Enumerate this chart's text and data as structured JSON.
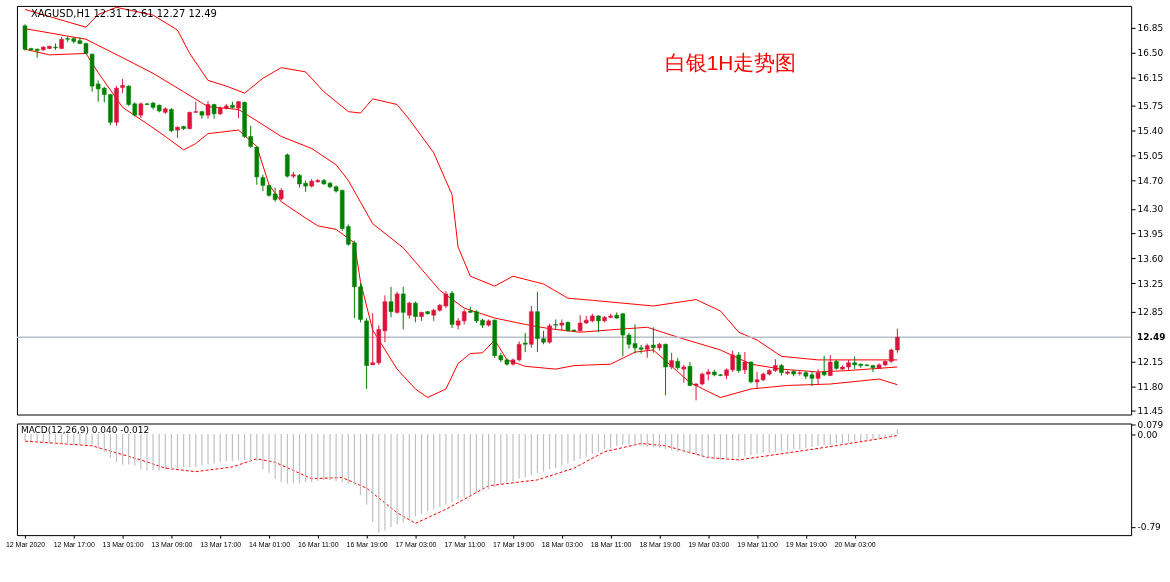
{
  "chart_data": [
    {
      "type": "candlestick",
      "title": "白银1H走势图",
      "subtitle": "XAGUSD,H1  12.31 12.61 12.27 12.49",
      "categories": [
        null,
        null,
        null,
        null,
        null,
        null,
        null,
        null,
        null,
        null,
        null,
        null,
        null,
        null,
        null,
        null,
        null,
        null,
        null,
        null,
        null,
        null,
        null,
        null,
        null,
        null,
        null,
        null,
        null,
        null,
        null,
        null,
        null,
        null,
        null,
        null,
        null,
        null,
        null,
        null,
        null,
        null,
        null,
        null,
        null,
        null,
        null,
        null,
        null,
        null,
        null,
        null,
        null,
        null,
        null,
        null,
        null,
        null,
        null,
        null,
        null,
        null,
        null,
        null,
        null,
        null,
        null,
        null,
        null,
        null,
        null,
        null,
        null,
        null,
        null,
        null,
        null,
        null,
        null,
        null,
        null,
        null,
        null,
        null,
        null,
        null,
        null,
        null,
        null,
        null,
        null,
        null,
        null,
        null,
        null,
        null,
        null,
        null,
        null,
        null,
        null,
        null,
        null,
        null,
        null,
        null,
        null,
        null,
        null,
        null,
        null,
        null,
        null,
        null,
        null,
        null,
        null,
        null,
        null,
        null,
        null,
        null,
        null,
        null,
        null,
        null,
        null,
        null,
        null,
        null,
        null,
        null,
        null,
        null,
        null,
        null,
        null,
        null,
        null,
        null,
        null,
        null,
        null,
        null,
        null,
        null,
        null,
        null,
        null,
        null,
        null,
        null,
        null,
        null,
        null,
        null,
        null,
        null,
        null,
        null,
        null,
        null,
        null,
        null,
        null,
        null,
        null,
        null,
        null,
        null,
        null,
        null,
        null,
        null,
        null,
        null,
        null,
        null,
        null,
        null,
        null
      ],
      "ohlc": [
        [
          16.88,
          16.9,
          16.53,
          16.55
        ],
        [
          16.56,
          16.57,
          16.53,
          16.54
        ],
        [
          16.55,
          16.56,
          16.43,
          16.53
        ],
        [
          16.54,
          16.59,
          16.53,
          16.58
        ],
        [
          16.56,
          16.6,
          16.55,
          16.59
        ],
        [
          16.58,
          16.63,
          16.54,
          16.57
        ],
        [
          16.56,
          16.72,
          16.55,
          16.69
        ],
        [
          16.7,
          16.73,
          16.65,
          16.69
        ],
        [
          16.7,
          16.72,
          16.63,
          16.66
        ],
        [
          16.67,
          16.72,
          16.62,
          16.63
        ],
        [
          16.63,
          16.64,
          16.48,
          16.49
        ],
        [
          16.48,
          16.49,
          15.95,
          16.03
        ],
        [
          16.06,
          16.11,
          15.81,
          15.99
        ],
        [
          16.0,
          16.02,
          15.8,
          15.91
        ],
        [
          15.91,
          15.92,
          15.48,
          15.52
        ],
        [
          15.52,
          16.03,
          15.47,
          16.0
        ],
        [
          16.01,
          16.13,
          15.93,
          16.04
        ],
        [
          16.03,
          16.04,
          15.75,
          15.77
        ],
        [
          15.78,
          15.8,
          15.6,
          15.62
        ],
        [
          15.62,
          15.8,
          15.58,
          15.78
        ],
        [
          15.78,
          15.79,
          15.76,
          15.77
        ],
        [
          15.79,
          15.81,
          15.7,
          15.73
        ],
        [
          15.76,
          15.77,
          15.66,
          15.68
        ],
        [
          15.66,
          15.73,
          15.64,
          15.71
        ],
        [
          15.7,
          15.72,
          15.38,
          15.4
        ],
        [
          15.41,
          15.46,
          15.3,
          15.45
        ],
        [
          15.46,
          15.47,
          15.41,
          15.43
        ],
        [
          15.43,
          15.67,
          15.42,
          15.66
        ],
        [
          15.66,
          15.81,
          15.65,
          15.67
        ],
        [
          15.67,
          15.68,
          15.57,
          15.62
        ],
        [
          15.62,
          15.82,
          15.57,
          15.77
        ],
        [
          15.77,
          15.78,
          15.57,
          15.64
        ],
        [
          15.64,
          15.74,
          15.62,
          15.72
        ],
        [
          15.72,
          15.78,
          15.7,
          15.75
        ],
        [
          15.76,
          15.81,
          15.71,
          15.73
        ],
        [
          15.72,
          15.82,
          15.58,
          15.81
        ],
        [
          15.8,
          15.81,
          15.3,
          15.32
        ],
        [
          15.32,
          15.47,
          15.16,
          15.18
        ],
        [
          15.17,
          15.18,
          14.64,
          14.75
        ],
        [
          14.74,
          14.78,
          14.55,
          14.63
        ],
        [
          14.63,
          14.64,
          14.47,
          14.49
        ],
        [
          14.51,
          14.6,
          14.4,
          14.43
        ],
        [
          14.44,
          14.59,
          14.42,
          14.56
        ],
        [
          15.06,
          15.08,
          14.74,
          14.76
        ],
        [
          14.76,
          14.82,
          14.73,
          14.78
        ],
        [
          14.77,
          14.79,
          14.6,
          14.65
        ],
        [
          14.66,
          14.7,
          14.54,
          14.62
        ],
        [
          14.62,
          14.72,
          14.6,
          14.69
        ],
        [
          14.68,
          14.72,
          14.67,
          14.7
        ],
        [
          14.7,
          14.72,
          14.64,
          14.65
        ],
        [
          14.66,
          14.68,
          14.59,
          14.61
        ],
        [
          14.61,
          14.63,
          14.53,
          14.55
        ],
        [
          14.56,
          14.57,
          13.99,
          14.02
        ],
        [
          14.05,
          14.08,
          13.78,
          13.8
        ],
        [
          13.82,
          13.85,
          12.76,
          13.2
        ],
        [
          13.2,
          13.25,
          12.7,
          12.74
        ],
        [
          12.72,
          12.76,
          11.76,
          12.09
        ],
        [
          12.1,
          12.83,
          12.1,
          12.13
        ],
        [
          12.13,
          12.66,
          12.1,
          12.6
        ],
        [
          12.58,
          13.08,
          12.42,
          12.99
        ],
        [
          12.99,
          13.2,
          12.77,
          12.85
        ],
        [
          12.84,
          13.13,
          12.82,
          13.1
        ],
        [
          13.1,
          13.2,
          12.6,
          12.84
        ],
        [
          12.8,
          12.99,
          12.75,
          12.97
        ],
        [
          12.97,
          12.99,
          12.7,
          12.78
        ],
        [
          12.78,
          12.85,
          12.72,
          12.84
        ],
        [
          12.85,
          12.86,
          12.81,
          12.82
        ],
        [
          12.8,
          12.89,
          12.72,
          12.87
        ],
        [
          12.87,
          12.96,
          12.85,
          12.94
        ],
        [
          12.93,
          13.14,
          12.9,
          13.1
        ],
        [
          13.11,
          13.14,
          12.62,
          12.67
        ],
        [
          12.66,
          12.76,
          12.6,
          12.72
        ],
        [
          12.72,
          12.88,
          12.67,
          12.85
        ],
        [
          12.86,
          12.92,
          12.83,
          12.84
        ],
        [
          12.85,
          12.87,
          12.69,
          12.72
        ],
        [
          12.73,
          12.75,
          12.62,
          12.66
        ],
        [
          12.66,
          12.74,
          12.64,
          12.72
        ],
        [
          12.73,
          12.74,
          12.2,
          12.23
        ],
        [
          12.23,
          12.27,
          12.14,
          12.17
        ],
        [
          12.17,
          12.19,
          12.09,
          12.11
        ],
        [
          12.11,
          12.19,
          12.09,
          12.17
        ],
        [
          12.17,
          12.43,
          12.15,
          12.39
        ],
        [
          12.41,
          12.55,
          12.28,
          12.39
        ],
        [
          12.39,
          12.93,
          12.34,
          12.85
        ],
        [
          12.85,
          13.13,
          12.28,
          12.47
        ],
        [
          12.47,
          12.58,
          12.39,
          12.42
        ],
        [
          12.42,
          12.68,
          12.4,
          12.65
        ],
        [
          12.67,
          12.74,
          12.6,
          12.66
        ],
        [
          12.66,
          12.74,
          12.58,
          12.69
        ],
        [
          12.7,
          12.71,
          12.57,
          12.58
        ],
        [
          12.59,
          12.6,
          12.57,
          12.58
        ],
        [
          12.58,
          12.8,
          12.57,
          12.69
        ],
        [
          12.69,
          12.79,
          12.68,
          12.73
        ],
        [
          12.72,
          12.82,
          12.7,
          12.79
        ],
        [
          12.79,
          12.8,
          12.56,
          12.72
        ],
        [
          12.72,
          12.79,
          12.7,
          12.77
        ],
        [
          12.77,
          12.82,
          12.76,
          12.79
        ],
        [
          12.8,
          12.84,
          12.75,
          12.76
        ],
        [
          12.82,
          12.83,
          12.22,
          12.52
        ],
        [
          12.52,
          12.55,
          12.33,
          12.39
        ],
        [
          12.4,
          12.67,
          12.26,
          12.34
        ],
        [
          12.34,
          12.38,
          12.26,
          12.32
        ],
        [
          12.32,
          12.4,
          12.2,
          12.37
        ],
        [
          12.38,
          12.63,
          12.27,
          12.34
        ],
        [
          12.34,
          12.41,
          12.3,
          12.39
        ],
        [
          12.39,
          12.4,
          11.67,
          12.07
        ],
        [
          12.07,
          12.27,
          12.04,
          12.16
        ],
        [
          12.15,
          12.2,
          12.03,
          12.06
        ],
        [
          12.04,
          12.1,
          11.85,
          12.07
        ],
        [
          12.08,
          12.14,
          11.8,
          11.81
        ],
        [
          11.81,
          11.84,
          11.6,
          11.83
        ],
        [
          11.83,
          11.99,
          11.81,
          11.97
        ],
        [
          11.97,
          12.04,
          11.88,
          12.0
        ],
        [
          12.0,
          12.03,
          11.94,
          11.96
        ],
        [
          11.96,
          11.97,
          11.94,
          11.95
        ],
        [
          11.95,
          12.05,
          11.9,
          12.03
        ],
        [
          12.03,
          12.3,
          12.0,
          12.24
        ],
        [
          12.24,
          12.28,
          11.99,
          12.02
        ],
        [
          12.03,
          12.28,
          11.97,
          12.14
        ],
        [
          12.14,
          12.15,
          11.84,
          11.86
        ],
        [
          11.86,
          12.0,
          11.77,
          11.89
        ],
        [
          11.89,
          11.99,
          11.87,
          11.97
        ],
        [
          11.97,
          12.04,
          11.95,
          12.02
        ],
        [
          12.02,
          12.18,
          12.0,
          12.09
        ],
        [
          12.09,
          12.11,
          11.95,
          11.99
        ],
        [
          11.98,
          12.02,
          11.96,
          12.0
        ],
        [
          12.01,
          12.03,
          11.94,
          11.97
        ],
        [
          11.98,
          12.01,
          11.95,
          11.99
        ],
        [
          11.99,
          12.01,
          11.9,
          11.94
        ],
        [
          11.96,
          12.01,
          11.8,
          11.91
        ],
        [
          11.91,
          12.04,
          11.82,
          11.99
        ],
        [
          12.0,
          12.23,
          11.94,
          11.96
        ],
        [
          11.95,
          12.24,
          11.94,
          12.14
        ],
        [
          12.15,
          12.17,
          12.03,
          12.05
        ],
        [
          12.04,
          12.09,
          12.03,
          12.07
        ],
        [
          12.07,
          12.17,
          12.02,
          12.13
        ],
        [
          12.13,
          12.22,
          12.04,
          12.1
        ],
        [
          12.11,
          12.12,
          12.06,
          12.09
        ],
        [
          12.1,
          12.11,
          12.08,
          12.09
        ],
        [
          12.09,
          12.1,
          12.0,
          12.06
        ],
        [
          12.05,
          12.12,
          12.04,
          12.1
        ],
        [
          12.1,
          12.16,
          12.08,
          12.15
        ],
        [
          12.15,
          12.33,
          12.13,
          12.31
        ],
        [
          12.31,
          12.61,
          12.27,
          12.49
        ],
        null,
        null,
        null,
        null,
        null,
        null,
        null,
        null,
        null,
        null,
        null,
        null,
        null,
        null,
        null,
        null,
        null,
        null,
        null,
        null,
        null,
        null,
        null,
        null,
        null,
        null,
        null,
        null,
        null,
        null,
        null,
        null,
        null,
        null,
        null,
        null,
        null
      ],
      "colors": [
        "#008000",
        "#008000",
        "#008000",
        "#dc143c",
        "#dc143c",
        "#008000",
        "#dc143c",
        "#008000",
        "#008000",
        "#008000",
        "#008000",
        "#008000",
        "#008000",
        "#008000",
        "#008000",
        "#dc143c",
        "#dc143c",
        "#008000",
        "#008000",
        "#dc143c",
        "#008000",
        "#008000",
        "#008000",
        "#dc143c",
        "#008000",
        "#dc143c",
        "#008000",
        "#dc143c",
        "#dc143c",
        "#008000",
        "#dc143c",
        "#008000",
        "#dc143c",
        "#dc143c",
        "#008000",
        "#dc143c",
        "#008000",
        "#008000",
        "#008000",
        "#008000",
        "#008000",
        "#008000",
        "#dc143c",
        "#008000",
        "#dc143c",
        "#008000",
        "#008000",
        "#dc143c",
        "#dc143c",
        "#008000",
        "#008000",
        "#008000",
        "#008000",
        "#008000",
        "#008000",
        "#008000",
        "#008000",
        "#dc143c",
        "#dc143c",
        "#dc143c",
        "#008000",
        "#dc143c",
        "#008000",
        "#dc143c",
        "#008000",
        "#dc143c",
        "#008000",
        "#dc143c",
        "#dc143c",
        "#dc143c",
        "#008000",
        "#dc143c",
        "#dc143c",
        "#008000",
        "#008000",
        "#008000",
        "#dc143c",
        "#008000",
        "#008000",
        "#008000",
        "#dc143c",
        "#dc143c",
        "#008000",
        "#dc143c",
        "#008000",
        "#008000",
        "#dc143c",
        "#008000",
        "#dc143c",
        "#008000",
        "#008000",
        "#dc143c",
        "#dc143c",
        "#dc143c",
        "#008000",
        "#dc143c",
        "#dc143c",
        "#008000",
        "#008000",
        "#008000",
        "#008000",
        "#008000",
        "#dc143c",
        "#008000",
        "#dc143c",
        "#008000",
        "#dc143c",
        "#008000",
        "#dc143c",
        "#008000",
        "#dc143c",
        "#dc143c",
        "#dc143c",
        "#008000",
        "#008000",
        "#dc143c",
        "#dc143c",
        "#008000",
        "#dc143c",
        "#008000",
        "#dc143c",
        "#dc143c",
        "#dc143c",
        "#dc143c",
        "#008000",
        "#dc143c",
        "#008000",
        "#dc143c",
        "#008000",
        "#008000",
        "#dc143c",
        "#008000",
        "#dc143c",
        "#008000",
        "#dc143c",
        "#dc143c",
        "#008000",
        "#008000",
        "#008000",
        "#008000",
        "#dc143c",
        "#dc143c",
        "#dc143c",
        "#dc143c",
        null,
        null,
        null,
        null,
        null,
        null,
        null,
        null,
        null,
        null,
        null,
        null,
        null,
        null,
        null,
        null,
        null,
        null,
        null,
        null,
        null,
        null,
        null,
        null,
        null,
        null,
        null,
        null,
        null,
        null,
        null,
        null,
        null,
        null,
        null,
        null,
        null
      ],
      "series": [
        {
          "type": "line",
          "color": "#ff0000",
          "values": [
            17.11,
            null,
            null,
            null,
            null,
            null,
            null,
            null,
            null,
            null,
            16.86,
            null,
            17.04,
            null,
            null,
            17.14,
            null,
            null,
            null,
            null,
            null,
            17.03,
            null,
            null,
            null,
            16.82,
            null,
            16.49,
            null,
            null,
            16.11,
            null,
            null,
            16.03,
            null,
            null,
            15.93,
            null,
            null,
            16.14,
            null,
            null,
            16.29,
            null,
            null,
            null,
            16.23,
            null,
            null,
            15.95,
            null,
            null,
            null,
            15.67,
            null,
            15.65,
            null,
            15.85,
            null,
            null,
            null,
            15.77,
            null,
            15.56,
            null,
            null,
            null,
            15.09,
            null,
            null,
            14.5,
            13.76,
            null,
            13.35,
            null,
            null,
            null,
            13.21,
            null,
            null,
            13.35,
            null,
            null,
            null,
            null,
            13.24,
            null,
            null,
            null,
            13.04,
            null,
            null,
            null,
            13.01,
            null,
            null,
            null,
            null,
            12.97,
            null,
            null,
            null,
            null,
            12.93,
            null,
            null,
            null,
            null,
            null,
            null,
            13.02,
            null,
            null,
            null,
            12.86,
            null,
            null,
            12.56,
            null,
            null,
            12.45,
            null,
            null,
            null,
            12.22,
            null,
            null,
            null,
            null,
            null,
            12.17,
            null,
            null,
            null,
            null,
            12.17,
            null,
            null,
            null,
            null,
            null,
            null,
            null,
            12.17,
            null,
            null,
            null,
            null,
            null,
            null,
            null,
            null,
            null,
            null,
            null,
            null,
            null,
            null,
            null,
            null,
            null,
            null,
            null,
            null,
            null,
            null,
            null,
            null,
            null,
            null,
            null,
            null,
            null,
            null,
            null,
            null,
            null,
            null,
            null,
            null,
            null
          ]
        },
        {
          "type": "line",
          "color": "#ff0000",
          "values": [
            16.84,
            null,
            null,
            null,
            null,
            null,
            null,
            null,
            null,
            null,
            16.69,
            null,
            null,
            null,
            null,
            null,
            16.43,
            null,
            null,
            null,
            null,
            16.21,
            null,
            null,
            null,
            null,
            15.95,
            null,
            null,
            null,
            15.74,
            null,
            null,
            null,
            null,
            15.7,
            null,
            null,
            15.54,
            null,
            null,
            null,
            15.32,
            null,
            null,
            null,
            null,
            15.15,
            null,
            null,
            null,
            14.92,
            null,
            14.7,
            null,
            null,
            null,
            14.09,
            null,
            null,
            null,
            null,
            13.75,
            null,
            null,
            null,
            13.35,
            null,
            13.15,
            null,
            null,
            null,
            12.9,
            null,
            null,
            null,
            null,
            12.76,
            null,
            null,
            null,
            null,
            12.67,
            null,
            null,
            null,
            12.61,
            null,
            null,
            null,
            null,
            12.56,
            null,
            null,
            null,
            null,
            null,
            12.6,
            null,
            null,
            null,
            null,
            12.63,
            null,
            null,
            null,
            null,
            12.49,
            null,
            null,
            null,
            null,
            null,
            null,
            12.31,
            null,
            null,
            null,
            null,
            12.11,
            null,
            null,
            null,
            null,
            12.04,
            null,
            null,
            null,
            null,
            null,
            12.0,
            null,
            null,
            null,
            null,
            12.02,
            null,
            null,
            null,
            null,
            null,
            null,
            null,
            12.07,
            null,
            null,
            null,
            null,
            null,
            null,
            null,
            null,
            null,
            null,
            null,
            null,
            null,
            null,
            null,
            null,
            null,
            null,
            null,
            null,
            null,
            null,
            null,
            null,
            null,
            null,
            null,
            null,
            null,
            null,
            null,
            null,
            null,
            null,
            null,
            null,
            null
          ]
        },
        {
          "type": "line",
          "color": "#ff0000",
          "values": [
            16.55,
            null,
            null,
            null,
            16.47,
            null,
            null,
            null,
            null,
            null,
            16.49,
            null,
            16.22,
            null,
            null,
            null,
            15.73,
            null,
            null,
            null,
            15.5,
            null,
            null,
            15.32,
            null,
            null,
            15.13,
            null,
            15.22,
            null,
            15.36,
            null,
            null,
            null,
            null,
            15.41,
            null,
            null,
            15.18,
            null,
            14.64,
            null,
            14.4,
            null,
            null,
            null,
            14.17,
            null,
            14.06,
            null,
            null,
            14.01,
            null,
            null,
            13.82,
            13.27,
            null,
            12.59,
            null,
            null,
            null,
            12.04,
            null,
            null,
            11.76,
            null,
            11.64,
            null,
            null,
            11.76,
            null,
            12.12,
            null,
            12.26,
            null,
            12.27,
            null,
            12.45,
            null,
            12.17,
            null,
            null,
            12.08,
            null,
            null,
            null,
            null,
            12.04,
            null,
            null,
            12.09,
            null,
            null,
            null,
            null,
            null,
            12.11,
            null,
            null,
            null,
            12.28,
            null,
            null,
            12.31,
            null,
            null,
            null,
            null,
            null,
            11.85,
            null,
            null,
            null,
            null,
            11.64,
            null,
            null,
            null,
            null,
            11.76,
            null,
            null,
            null,
            null,
            null,
            11.81,
            null,
            null,
            null,
            null,
            null,
            null,
            11.83,
            null,
            null,
            null,
            null,
            null,
            null,
            null,
            11.9,
            null,
            null,
            11.82,
            null,
            null,
            null,
            null,
            null,
            null,
            null,
            null,
            null,
            null,
            null,
            null,
            null,
            null,
            null,
            null,
            null,
            null,
            null,
            null,
            null,
            null,
            null,
            null,
            null,
            null,
            null,
            null,
            null,
            null,
            null,
            null,
            null,
            null,
            null,
            null,
            null
          ]
        }
      ],
      "ref_lines": [
        {
          "axis": "y",
          "value": 12.49,
          "label": "12.49",
          "color": "#b8c0c8"
        }
      ],
      "ylim": [
        11.4,
        17.16
      ],
      "yticks": [
        16.85,
        {
          "value": 16.5,
          "label": "16.50"
        },
        16.15,
        15.75,
        {
          "value": 15.4,
          "label": "15.40"
        },
        15.05,
        {
          "value": 14.7,
          "label": "14.70"
        },
        {
          "value": 14.3,
          "label": "14.30"
        },
        13.95,
        {
          "value": 13.6,
          "label": "13.60"
        },
        13.25,
        12.85,
        12.15,
        {
          "value": 11.8,
          "label": "11.80"
        },
        11.45
      ],
      "tick_labels": "y",
      "grid": false
    },
    {
      "type": "bar",
      "title": "MACD(12,26,9) 0.040 -0.012",
      "color": "#c0c0c0",
      "categories": [
        "12 Mar 2020",
        null,
        null,
        null,
        null,
        null,
        null,
        null,
        "12 Mar 17:00",
        null,
        null,
        null,
        null,
        null,
        null,
        null,
        "13 Mar 01:00",
        null,
        null,
        null,
        null,
        null,
        null,
        null,
        "13 Mar 09:00",
        null,
        null,
        null,
        null,
        null,
        null,
        null,
        "13 Mar 17:00",
        null,
        null,
        null,
        null,
        null,
        null,
        null,
        "14 Mar 01:00",
        null,
        null,
        null,
        null,
        null,
        null,
        null,
        "16 Mar 11:00",
        null,
        null,
        null,
        null,
        null,
        null,
        null,
        "16 Mar 19:00",
        null,
        null,
        null,
        null,
        null,
        null,
        null,
        "17 Mar 03:00",
        null,
        null,
        null,
        null,
        null,
        null,
        null,
        "17 Mar 11:00",
        null,
        null,
        null,
        null,
        null,
        null,
        null,
        "17 Mar 19:00",
        null,
        null,
        null,
        null,
        null,
        null,
        null,
        "18 Mar 03:00",
        null,
        null,
        null,
        null,
        null,
        null,
        null,
        "18 Mar 11:00",
        null,
        null,
        null,
        null,
        null,
        null,
        null,
        "18 Mar 19:00",
        null,
        null,
        null,
        null,
        null,
        null,
        null,
        "19 Mar 03:00",
        null,
        null,
        null,
        null,
        null,
        null,
        null,
        "19 Mar 11:00",
        null,
        null,
        null,
        null,
        null,
        null,
        null,
        "19 Mar 19:00",
        null,
        null,
        null,
        null,
        null,
        null,
        null,
        "20 Mar 03:00",
        null,
        null,
        null,
        null,
        null,
        null,
        null,
        null,
        null,
        null,
        null,
        null,
        null,
        null,
        null,
        null,
        null,
        null,
        null,
        null,
        null,
        null,
        null,
        null,
        null,
        null,
        null,
        null,
        null,
        null,
        null,
        null,
        null,
        null,
        null,
        null,
        null,
        null,
        null,
        null,
        null,
        null,
        null,
        null
      ],
      "values": [
        -0.05,
        -0.06,
        -0.07,
        -0.07,
        -0.08,
        -0.08,
        -0.08,
        -0.08,
        -0.09,
        -0.09,
        -0.09,
        -0.09,
        -0.12,
        -0.15,
        -0.2,
        -0.24,
        -0.26,
        -0.26,
        -0.27,
        -0.3,
        -0.31,
        -0.31,
        -0.31,
        -0.3,
        -0.3,
        -0.29,
        -0.28,
        -0.28,
        -0.28,
        -0.27,
        -0.26,
        -0.25,
        -0.24,
        -0.23,
        -0.23,
        -0.22,
        -0.22,
        -0.23,
        -0.23,
        -0.3,
        -0.33,
        -0.38,
        -0.41,
        -0.42,
        -0.42,
        -0.42,
        -0.41,
        -0.41,
        -0.4,
        -0.39,
        -0.39,
        -0.4,
        -0.41,
        -0.42,
        -0.43,
        -0.52,
        -0.6,
        -0.75,
        -0.84,
        -0.82,
        -0.79,
        -0.77,
        -0.75,
        -0.72,
        -0.7,
        -0.68,
        -0.66,
        -0.64,
        -0.62,
        -0.6,
        -0.58,
        -0.56,
        -0.54,
        -0.52,
        -0.5,
        -0.48,
        -0.47,
        -0.45,
        -0.43,
        -0.41,
        -0.4,
        -0.38,
        -0.37,
        -0.35,
        -0.33,
        -0.32,
        -0.3,
        -0.29,
        -0.27,
        -0.25,
        -0.23,
        -0.21,
        -0.19,
        -0.17,
        -0.15,
        -0.13,
        -0.12,
        -0.1,
        -0.09,
        -0.09,
        -0.09,
        -0.1,
        -0.11,
        -0.11,
        -0.12,
        -0.13,
        -0.14,
        -0.15,
        -0.16,
        -0.17,
        -0.18,
        -0.19,
        -0.2,
        -0.21,
        -0.22,
        -0.22,
        -0.21,
        -0.2,
        -0.19,
        -0.18,
        -0.17,
        -0.16,
        -0.16,
        -0.15,
        -0.14,
        -0.14,
        -0.13,
        -0.13,
        -0.12,
        -0.11,
        -0.1,
        -0.09,
        -0.09,
        -0.08,
        -0.08,
        -0.07,
        -0.06,
        -0.06,
        -0.05,
        -0.05,
        -0.04,
        -0.03,
        -0.02,
        0.04,
        null,
        null,
        null,
        null,
        null,
        null,
        null,
        null,
        null,
        null,
        null,
        null,
        null,
        null,
        null,
        null,
        null,
        null,
        null,
        null,
        null,
        null,
        null,
        null,
        null,
        null,
        null,
        null,
        null,
        null,
        null,
        null,
        null,
        null,
        null,
        null,
        null
      ],
      "series": [
        {
          "type": "line",
          "color": "#ff0000",
          "line_style": "dashed",
          "values": [
            -0.06,
            null,
            null,
            null,
            null,
            null,
            null,
            null,
            null,
            null,
            null,
            -0.1,
            null,
            null,
            null,
            null,
            null,
            null,
            null,
            -0.22,
            null,
            null,
            null,
            -0.29,
            null,
            null,
            null,
            null,
            -0.32,
            null,
            null,
            null,
            null,
            null,
            -0.28,
            null,
            null,
            null,
            -0.21,
            null,
            null,
            -0.24,
            null,
            null,
            null,
            null,
            null,
            -0.38,
            null,
            null,
            null,
            null,
            -0.37,
            null,
            null,
            null,
            -0.46,
            null,
            null,
            null,
            null,
            -0.67,
            null,
            null,
            -0.76,
            null,
            null,
            null,
            null,
            -0.64,
            null,
            null,
            null,
            null,
            null,
            null,
            -0.44,
            null,
            null,
            null,
            null,
            null,
            null,
            null,
            -0.39,
            null,
            null,
            null,
            null,
            null,
            -0.29,
            null,
            null,
            null,
            null,
            -0.15,
            null,
            null,
            null,
            null,
            null,
            -0.08,
            null,
            null,
            null,
            -0.1,
            null,
            null,
            null,
            null,
            null,
            null,
            -0.2,
            null,
            null,
            null,
            null,
            -0.22,
            null,
            null,
            null,
            -0.19,
            null,
            null,
            null,
            null,
            null,
            null,
            null,
            -0.13,
            null,
            null,
            null,
            null,
            -0.09,
            null,
            null,
            null,
            null,
            null,
            -0.04,
            null,
            null,
            -0.012,
            null,
            null,
            null,
            null,
            null,
            null,
            null,
            null,
            null,
            null,
            null,
            null,
            null,
            null,
            null,
            null,
            null,
            null,
            null,
            null,
            null,
            null,
            null,
            null,
            null,
            null,
            null,
            null,
            null,
            null,
            null,
            null,
            null,
            null,
            null,
            null,
            null
          ]
        }
      ],
      "ylim": [
        -0.86,
        0.09
      ],
      "yticks": [
        0.079,
        {
          "value": 0,
          "label": "0.00"
        },
        -0.79
      ],
      "grid": false
    }
  ]
}
